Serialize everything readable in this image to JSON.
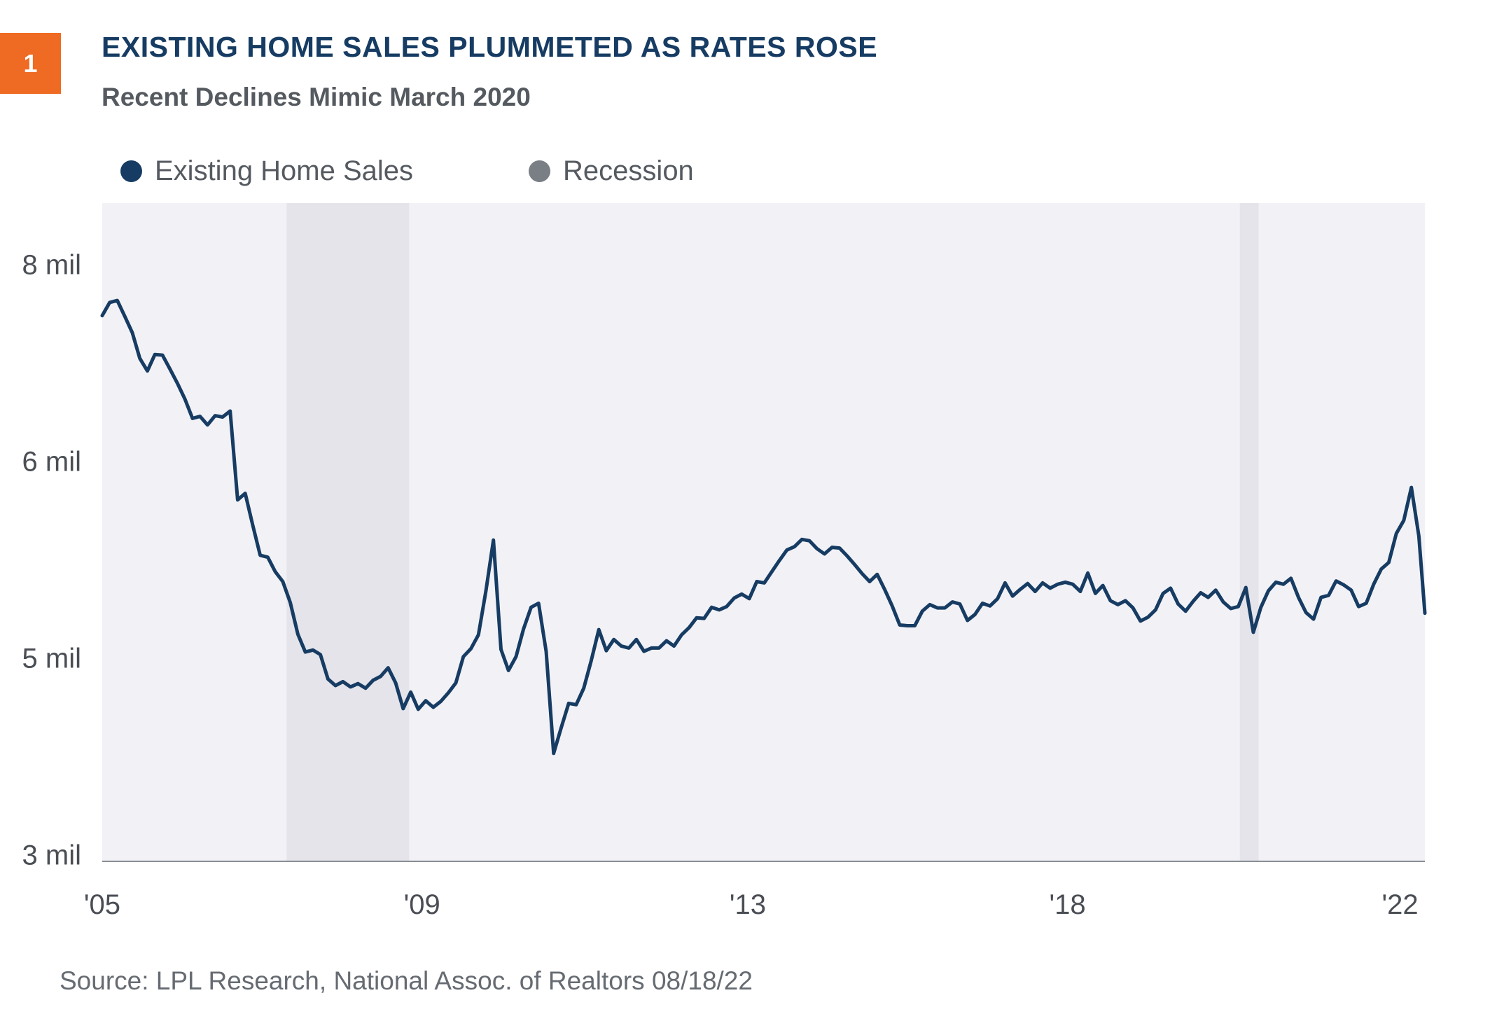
{
  "badge": {
    "number": "1",
    "color": "#ef6a22"
  },
  "header": {
    "title": "EXISTING HOME SALES PLUMMETED AS RATES ROSE",
    "subtitle": "Recent Declines Mimic March 2020"
  },
  "legend": {
    "items": [
      {
        "label": "Existing Home Sales",
        "color": "#173c63"
      },
      {
        "label": "Recession",
        "color": "#7a7e85"
      }
    ]
  },
  "source": "Source: LPL Research, National Assoc. of Realtors  08/18/22",
  "colors": {
    "plot_bg": "#f2f2f6",
    "recession_band": "#e4e4ea",
    "line": "#173c63",
    "axis": "#8a8e94",
    "tick_text": "#4a4e54"
  },
  "chart_data": {
    "type": "line",
    "title": "EXISTING HOME SALES PLUMMETED AS RATES ROSE",
    "subtitle": "Recent Declines Mimic March 2020",
    "xlabel": "",
    "ylabel": "",
    "x_range": [
      2005.0,
      2022.58
    ],
    "x_ticks": [
      {
        "label": "'05",
        "x": 2005.0
      },
      {
        "label": "'09",
        "x": 2009.25
      },
      {
        "label": "'13",
        "x": 2013.58
      },
      {
        "label": "'18",
        "x": 2017.83
      },
      {
        "label": "'22",
        "x": 2022.25
      }
    ],
    "y_axis_labels": [
      "8 mil",
      "6 mil",
      "5 mil",
      "3 mil"
    ],
    "y_positions": [
      0.0,
      0.3,
      0.6,
      0.9
    ],
    "recessions": [
      {
        "start": 2007.45,
        "end": 2009.08
      },
      {
        "start": 2020.12,
        "end": 2020.37
      }
    ],
    "grid": false,
    "legend_position": "top-left",
    "series": [
      {
        "name": "Existing Home Sales",
        "points": [
          [
            2005.0,
            0.171
          ],
          [
            2005.1,
            0.151
          ],
          [
            2005.2,
            0.148
          ],
          [
            2005.3,
            0.172
          ],
          [
            2005.4,
            0.197
          ],
          [
            2005.5,
            0.236
          ],
          [
            2005.6,
            0.255
          ],
          [
            2005.7,
            0.23
          ],
          [
            2005.8,
            0.231
          ],
          [
            2005.9,
            0.252
          ],
          [
            2006.0,
            0.274
          ],
          [
            2006.1,
            0.298
          ],
          [
            2006.2,
            0.327
          ],
          [
            2006.3,
            0.324
          ],
          [
            2006.4,
            0.337
          ],
          [
            2006.5,
            0.323
          ],
          [
            2006.6,
            0.325
          ],
          [
            2006.7,
            0.316
          ],
          [
            2006.8,
            0.451
          ],
          [
            2006.9,
            0.441
          ],
          [
            2007.0,
            0.489
          ],
          [
            2007.1,
            0.535
          ],
          [
            2007.2,
            0.538
          ],
          [
            2007.3,
            0.56
          ],
          [
            2007.4,
            0.575
          ],
          [
            2007.5,
            0.607
          ],
          [
            2007.6,
            0.655
          ],
          [
            2007.7,
            0.682
          ],
          [
            2007.8,
            0.679
          ],
          [
            2007.9,
            0.686
          ],
          [
            2008.0,
            0.723
          ],
          [
            2008.1,
            0.733
          ],
          [
            2008.2,
            0.727
          ],
          [
            2008.3,
            0.735
          ],
          [
            2008.4,
            0.73
          ],
          [
            2008.5,
            0.737
          ],
          [
            2008.6,
            0.725
          ],
          [
            2008.7,
            0.719
          ],
          [
            2008.8,
            0.706
          ],
          [
            2008.9,
            0.729
          ],
          [
            2009.0,
            0.768
          ],
          [
            2009.1,
            0.743
          ],
          [
            2009.2,
            0.769
          ],
          [
            2009.3,
            0.756
          ],
          [
            2009.4,
            0.766
          ],
          [
            2009.5,
            0.757
          ],
          [
            2009.6,
            0.744
          ],
          [
            2009.7,
            0.729
          ],
          [
            2009.8,
            0.689
          ],
          [
            2009.9,
            0.677
          ],
          [
            2010.0,
            0.656
          ],
          [
            2010.1,
            0.589
          ],
          [
            2010.2,
            0.512
          ],
          [
            2010.3,
            0.678
          ],
          [
            2010.4,
            0.71
          ],
          [
            2010.5,
            0.689
          ],
          [
            2010.6,
            0.647
          ],
          [
            2010.7,
            0.614
          ],
          [
            2010.8,
            0.608
          ],
          [
            2010.9,
            0.681
          ],
          [
            2011.0,
            0.836
          ],
          [
            2011.1,
            0.797
          ],
          [
            2011.2,
            0.76
          ],
          [
            2011.3,
            0.762
          ],
          [
            2011.4,
            0.737
          ],
          [
            2011.5,
            0.695
          ],
          [
            2011.6,
            0.648
          ],
          [
            2011.7,
            0.68
          ],
          [
            2011.8,
            0.663
          ],
          [
            2011.9,
            0.673
          ],
          [
            2012.0,
            0.676
          ],
          [
            2012.1,
            0.663
          ],
          [
            2012.2,
            0.681
          ],
          [
            2012.3,
            0.676
          ],
          [
            2012.4,
            0.676
          ],
          [
            2012.5,
            0.665
          ],
          [
            2012.6,
            0.673
          ],
          [
            2012.7,
            0.656
          ],
          [
            2012.8,
            0.645
          ],
          [
            2012.9,
            0.63
          ],
          [
            2013.0,
            0.631
          ],
          [
            2013.1,
            0.614
          ],
          [
            2013.2,
            0.618
          ],
          [
            2013.3,
            0.613
          ],
          [
            2013.4,
            0.6
          ],
          [
            2013.5,
            0.594
          ],
          [
            2013.6,
            0.601
          ],
          [
            2013.7,
            0.575
          ],
          [
            2013.8,
            0.577
          ],
          [
            2013.9,
            0.56
          ],
          [
            2014.0,
            0.543
          ],
          [
            2014.1,
            0.527
          ],
          [
            2014.2,
            0.522
          ],
          [
            2014.3,
            0.511
          ],
          [
            2014.4,
            0.513
          ],
          [
            2014.5,
            0.525
          ],
          [
            2014.6,
            0.533
          ],
          [
            2014.7,
            0.523
          ],
          [
            2014.8,
            0.524
          ],
          [
            2014.9,
            0.536
          ],
          [
            2015.0,
            0.549
          ],
          [
            2015.1,
            0.563
          ],
          [
            2015.2,
            0.575
          ],
          [
            2015.3,
            0.564
          ],
          [
            2015.4,
            0.587
          ],
          [
            2015.5,
            0.612
          ],
          [
            2015.6,
            0.641
          ],
          [
            2015.7,
            0.642
          ],
          [
            2015.8,
            0.642
          ],
          [
            2015.9,
            0.62
          ],
          [
            2016.0,
            0.61
          ],
          [
            2016.1,
            0.615
          ],
          [
            2016.2,
            0.615
          ],
          [
            2016.3,
            0.606
          ],
          [
            2016.4,
            0.609
          ],
          [
            2016.5,
            0.634
          ],
          [
            2016.6,
            0.625
          ],
          [
            2016.7,
            0.608
          ],
          [
            2016.8,
            0.612
          ],
          [
            2016.9,
            0.601
          ],
          [
            2017.0,
            0.577
          ],
          [
            2017.1,
            0.597
          ],
          [
            2017.2,
            0.587
          ],
          [
            2017.3,
            0.578
          ],
          [
            2017.4,
            0.59
          ],
          [
            2017.5,
            0.577
          ],
          [
            2017.6,
            0.585
          ],
          [
            2017.7,
            0.579
          ],
          [
            2017.8,
            0.576
          ],
          [
            2017.9,
            0.579
          ],
          [
            2018.0,
            0.59
          ],
          [
            2018.1,
            0.562
          ],
          [
            2018.2,
            0.593
          ],
          [
            2018.3,
            0.581
          ],
          [
            2018.4,
            0.604
          ],
          [
            2018.5,
            0.61
          ],
          [
            2018.6,
            0.604
          ],
          [
            2018.7,
            0.615
          ],
          [
            2018.8,
            0.635
          ],
          [
            2018.9,
            0.629
          ],
          [
            2019.0,
            0.618
          ],
          [
            2019.1,
            0.593
          ],
          [
            2019.2,
            0.585
          ],
          [
            2019.3,
            0.609
          ],
          [
            2019.4,
            0.62
          ],
          [
            2019.5,
            0.605
          ],
          [
            2019.6,
            0.592
          ],
          [
            2019.7,
            0.599
          ],
          [
            2019.8,
            0.588
          ],
          [
            2019.9,
            0.606
          ],
          [
            2020.0,
            0.616
          ],
          [
            2020.1,
            0.613
          ],
          [
            2020.2,
            0.584
          ],
          [
            2020.3,
            0.652
          ],
          [
            2020.4,
            0.614
          ],
          [
            2020.5,
            0.589
          ],
          [
            2020.6,
            0.576
          ],
          [
            2020.7,
            0.579
          ],
          [
            2020.8,
            0.57
          ],
          [
            2020.9,
            0.599
          ],
          [
            2021.0,
            0.622
          ],
          [
            2021.1,
            0.632
          ],
          [
            2021.2,
            0.599
          ],
          [
            2021.3,
            0.596
          ],
          [
            2021.4,
            0.574
          ],
          [
            2021.5,
            0.58
          ],
          [
            2021.6,
            0.588
          ],
          [
            2021.7,
            0.613
          ],
          [
            2021.8,
            0.608
          ],
          [
            2021.9,
            0.579
          ],
          [
            2022.0,
            0.556
          ],
          [
            2022.1,
            0.546
          ],
          [
            2022.2,
            0.502
          ],
          [
            2022.3,
            0.482
          ],
          [
            2022.4,
            0.432
          ],
          [
            2022.5,
            0.506
          ],
          [
            2022.58,
            0.623
          ]
        ]
      }
    ]
  }
}
